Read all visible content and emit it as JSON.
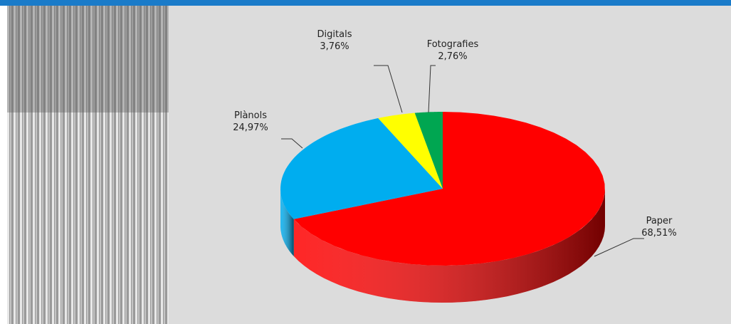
{
  "chart_data": {
    "type": "pie",
    "categories": [
      "Paper",
      "Plànols",
      "Digitals",
      "Fotografies"
    ],
    "values": [
      68.51,
      24.97,
      3.76,
      2.76
    ],
    "value_labels": [
      "68,51%",
      "24,97%",
      "3,76%",
      "2,76%"
    ],
    "colors": [
      "#ff0000",
      "#00adef",
      "#ffff00",
      "#00a651"
    ]
  }
}
